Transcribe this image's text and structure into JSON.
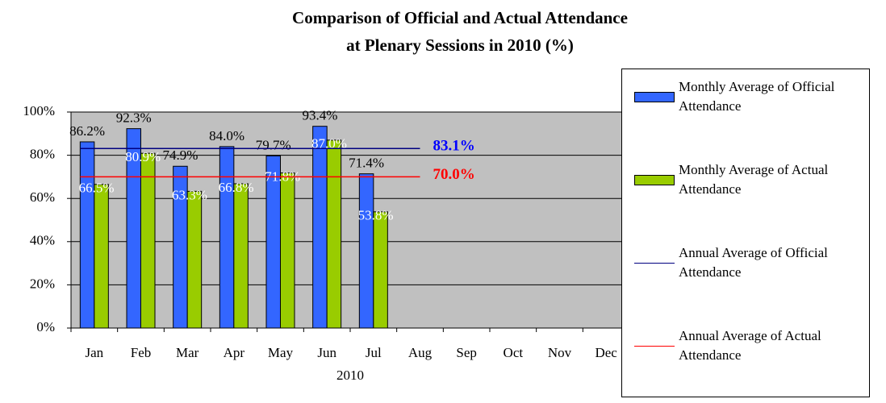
{
  "chart_data": {
    "type": "bar",
    "title": [
      "Comparison of Official and Actual Attendance",
      "at Plenary Sessions in 2010 (%)"
    ],
    "x_label": "2010",
    "categories": [
      "Jan",
      "Feb",
      "Mar",
      "Apr",
      "May",
      "Jun",
      "Jul",
      "Aug",
      "Sep",
      "Oct",
      "Nov",
      "Dec"
    ],
    "series": [
      {
        "name": "Monthly Average of Official Attendance",
        "color": "#3366ff",
        "values": [
          86.2,
          92.3,
          74.9,
          84.0,
          79.7,
          93.4,
          71.4,
          null,
          null,
          null,
          null,
          null
        ],
        "value_labels": [
          "86.2%",
          "92.3%",
          "74.9%",
          "84.0%",
          "79.7%",
          "93.4%",
          "71.4%",
          null,
          null,
          null,
          null,
          null
        ]
      },
      {
        "name": "Monthly Average of Actual Attendance",
        "color": "#99cc00",
        "values": [
          66.5,
          80.9,
          63.3,
          66.8,
          71.8,
          87.0,
          53.8,
          null,
          null,
          null,
          null,
          null
        ],
        "value_labels": [
          "66.5%",
          "80.9%",
          "63.3%",
          "66.8%",
          "71.8%",
          "87.0%",
          "53.8%",
          null,
          null,
          null,
          null,
          null
        ]
      }
    ],
    "annual_averages": [
      {
        "name": "Annual Average of Official Attendance",
        "color": "#000080",
        "label_color": "#0000ff",
        "value": 83.1,
        "value_label": "83.1%"
      },
      {
        "name": "Annual Average of Actual Attendance",
        "color": "#ff0000",
        "label_color": "#ff0000",
        "value": 70.0,
        "value_label": "70.0%"
      }
    ],
    "ylim": [
      0,
      100
    ],
    "yticks": [
      {
        "value": 0,
        "label": "0%"
      },
      {
        "value": 20,
        "label": "20%"
      },
      {
        "value": 40,
        "label": "40%"
      },
      {
        "value": 60,
        "label": "60%"
      },
      {
        "value": 80,
        "label": "80%"
      },
      {
        "value": 100,
        "label": "100%"
      }
    ],
    "grid": true,
    "legend": "right"
  }
}
